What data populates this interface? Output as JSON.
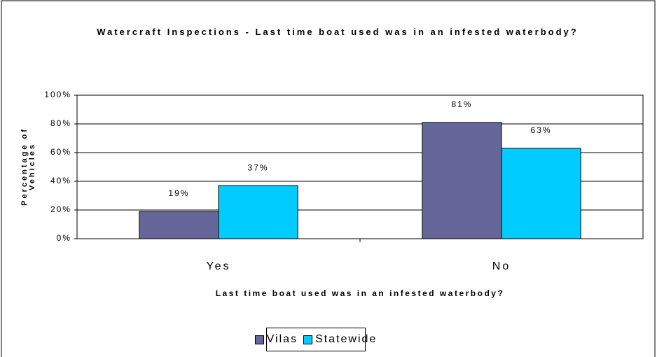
{
  "chart_data": {
    "type": "bar",
    "title": "Watercraft Inspections - Last time boat used was in an infested waterbody?",
    "x_label": "Last time boat used was in an infested waterbody?",
    "y_label": "Percentage of Vehicles",
    "categories": [
      "Yes",
      "No"
    ],
    "series": [
      {
        "name": "Vilas",
        "color": "#666699",
        "values": [
          19,
          81
        ],
        "value_labels": [
          "19%",
          "81%"
        ]
      },
      {
        "name": "Statewide",
        "color": "#00ccff",
        "values": [
          37,
          63
        ],
        "value_labels": [
          "37%",
          "63%"
        ]
      }
    ],
    "ylim": [
      0,
      100
    ],
    "yticks": [
      {
        "value": 0,
        "label": "0%"
      },
      {
        "value": 20,
        "label": "20%"
      },
      {
        "value": 40,
        "label": "40%"
      },
      {
        "value": 60,
        "label": "60%"
      },
      {
        "value": 80,
        "label": "80%"
      },
      {
        "value": 100,
        "label": "100%"
      }
    ],
    "grid": true,
    "legend": "bottom"
  }
}
